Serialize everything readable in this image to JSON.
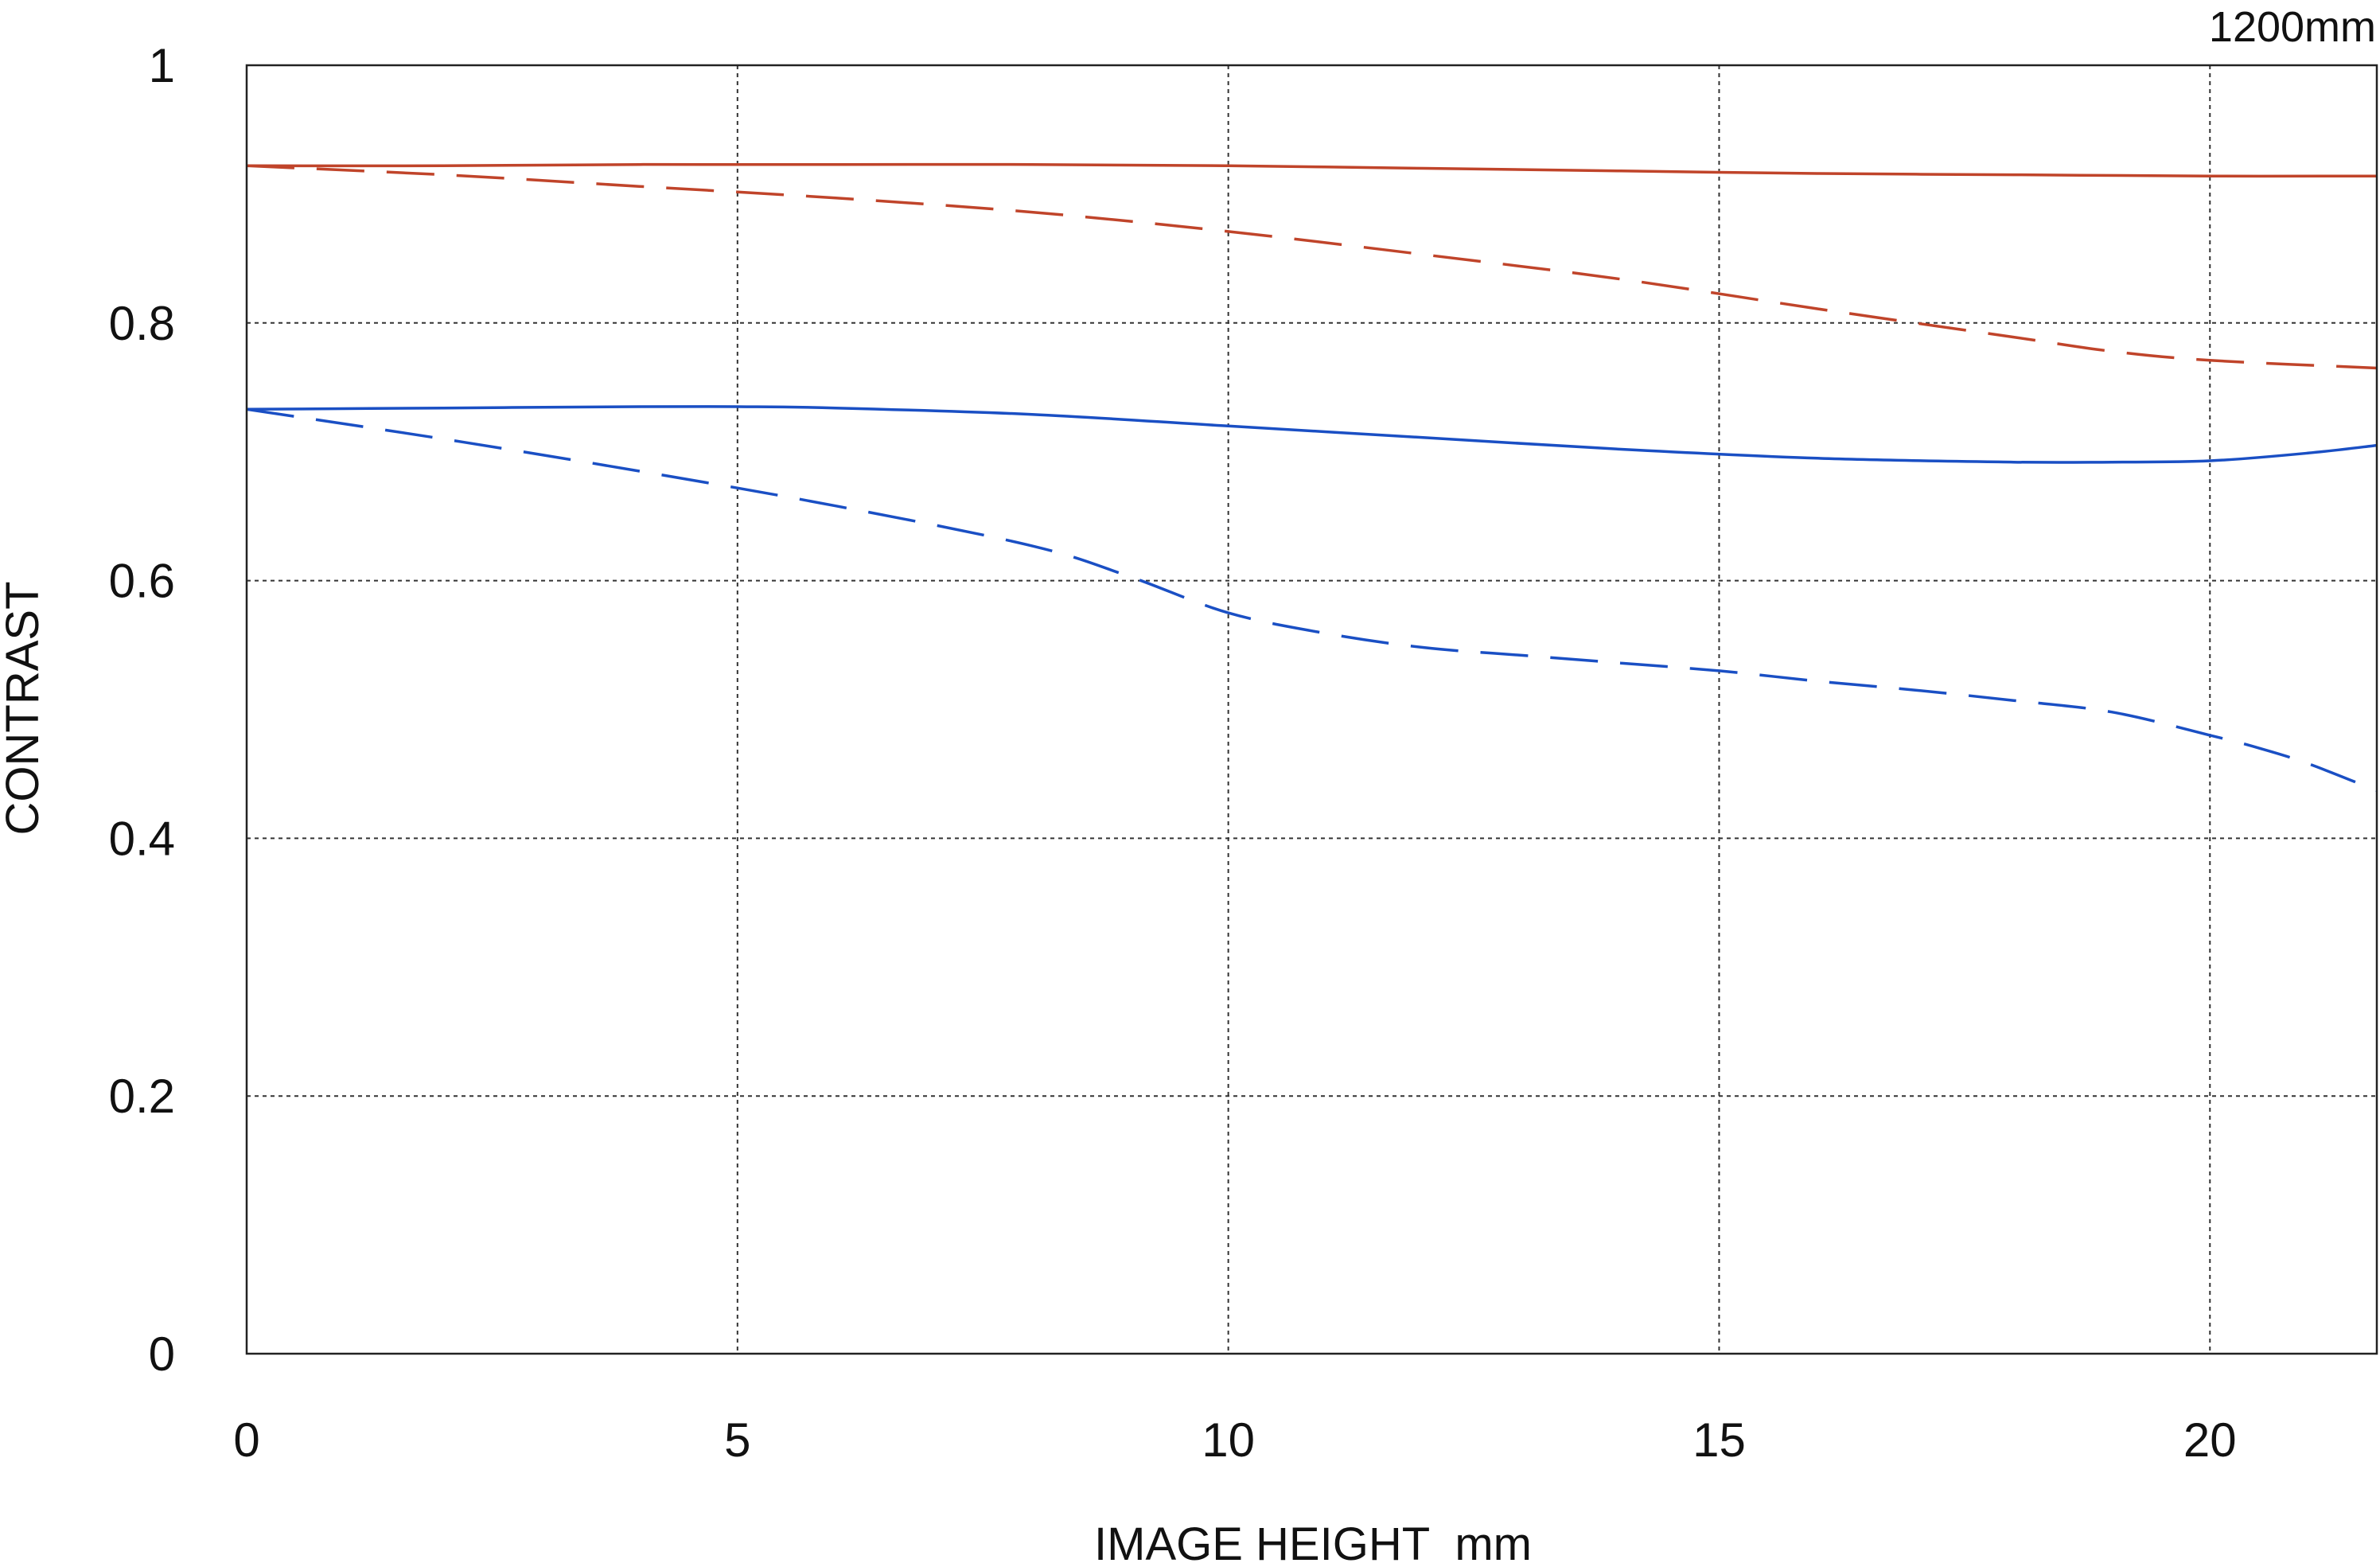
{
  "chart_data": {
    "type": "line",
    "title": "1200mm",
    "xlabel": "IMAGE HEIGHT  mm",
    "ylabel": "CONTRAST",
    "xlim": [
      0,
      21.7
    ],
    "ylim": [
      0,
      1
    ],
    "x_ticks": [
      0,
      5,
      10,
      15,
      20
    ],
    "x_tick_labels": [
      "0",
      "5",
      "10",
      "15",
      "20"
    ],
    "y_ticks": [
      0,
      0.2,
      0.4,
      0.6,
      0.8,
      1
    ],
    "y_tick_labels": [
      "0",
      "0.2",
      "0.4",
      "0.6",
      "0.8",
      "1"
    ],
    "grid": true,
    "grid_style": "dotted",
    "legend": "none",
    "series": [
      {
        "color": "#c0442a",
        "line_style": "solid",
        "x": [
          0,
          2,
          4,
          6,
          8,
          10,
          12,
          14,
          16,
          18,
          20,
          21.7
        ],
        "values": [
          0.922,
          0.922,
          0.923,
          0.923,
          0.923,
          0.922,
          0.92,
          0.918,
          0.916,
          0.915,
          0.914,
          0.914
        ]
      },
      {
        "color": "#c0442a",
        "line_style": "dashed",
        "x": [
          0,
          2,
          4,
          6,
          8,
          10,
          12,
          14,
          16,
          18,
          19,
          20,
          21.7
        ],
        "values": [
          0.922,
          0.915,
          0.906,
          0.897,
          0.886,
          0.871,
          0.853,
          0.834,
          0.811,
          0.789,
          0.778,
          0.771,
          0.765
        ]
      },
      {
        "color": "#1a4fc4",
        "line_style": "solid",
        "x": [
          0,
          2,
          4,
          5,
          6,
          8,
          10,
          12,
          14,
          16,
          18,
          19,
          20,
          21,
          21.7
        ],
        "values": [
          0.733,
          0.734,
          0.735,
          0.735,
          0.734,
          0.729,
          0.72,
          0.711,
          0.702,
          0.695,
          0.692,
          0.692,
          0.693,
          0.699,
          0.705
        ]
      },
      {
        "color": "#1a4fc4",
        "line_style": "dashed",
        "x": [
          0,
          2,
          4,
          6,
          8,
          9,
          10,
          11,
          12,
          13,
          14,
          15,
          16,
          17,
          18,
          19,
          20,
          20.5,
          21,
          21.7
        ],
        "values": [
          0.733,
          0.71,
          0.685,
          0.658,
          0.627,
          0.603,
          0.575,
          0.559,
          0.548,
          0.542,
          0.536,
          0.53,
          0.522,
          0.515,
          0.507,
          0.498,
          0.48,
          0.47,
          0.458,
          0.437
        ]
      }
    ]
  }
}
